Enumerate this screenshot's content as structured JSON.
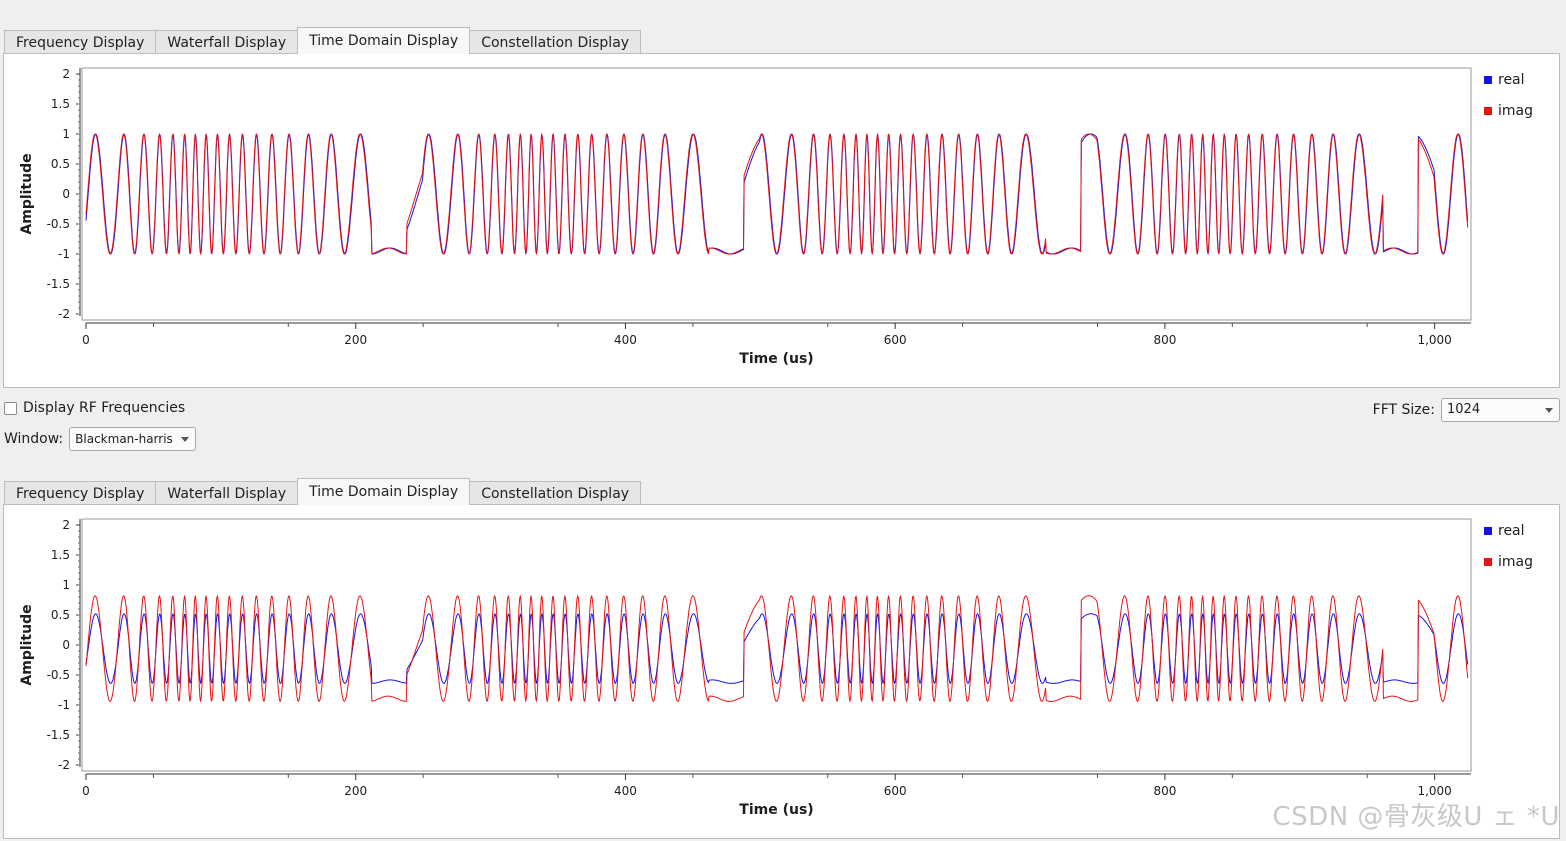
{
  "tabs": [
    "Frequency Display",
    "Waterfall Display",
    "Time Domain Display",
    "Constellation Display"
  ],
  "active_tab": "Time Domain Display",
  "colors": {
    "real": "#1414e6",
    "imag": "#e61414"
  },
  "legend": {
    "real": "real",
    "imag": "imag"
  },
  "controls": {
    "display_rf_label": "Display RF Frequencies",
    "display_rf_checked": false,
    "window_label": "Window:",
    "window_value": "Blackman-harris",
    "fft_label": "FFT Size:",
    "fft_value": "1024"
  },
  "watermark": "CSDN @骨灰级U ェ *U",
  "chart_data": [
    {
      "type": "line",
      "title": "",
      "xlabel": "Time (us)",
      "ylabel": "Amplitude",
      "xlim": [
        0,
        1024
      ],
      "ylim": [
        -2,
        2
      ],
      "xticks": [
        "0",
        "200",
        "400",
        "600",
        "800",
        "1,000"
      ],
      "yticks": [
        "2",
        "1.5",
        "1",
        "0.5",
        "0",
        "-0.5",
        "-1",
        "-1.5",
        "-2"
      ],
      "grid": false,
      "legend_position": "top-right",
      "series": [
        {
          "name": "real",
          "amplitude": 1.0,
          "offset": 0.0,
          "pattern": "FSK bursts, |x|≤1, period ~250 us"
        },
        {
          "name": "imag",
          "amplitude": 1.0,
          "offset": 0.0,
          "pattern": "FSK bursts, |x|≤1, period ~250 us"
        }
      ]
    },
    {
      "type": "line",
      "title": "",
      "xlabel": "Time (us)",
      "ylabel": "Amplitude",
      "xlim": [
        0,
        1024
      ],
      "ylim": [
        -2,
        2
      ],
      "xticks": [
        "0",
        "200",
        "400",
        "600",
        "800",
        "1,000"
      ],
      "yticks": [
        "2",
        "1.5",
        "1",
        "0.5",
        "0",
        "-0.5",
        "-1",
        "-1.5",
        "-2"
      ],
      "grid": false,
      "legend_position": "top-right",
      "series": [
        {
          "name": "real",
          "amplitude": 0.58,
          "offset": -0.06,
          "pattern": "FSK bursts, range ~-0.65..0.55"
        },
        {
          "name": "imag",
          "amplitude": 0.88,
          "offset": -0.06,
          "pattern": "FSK bursts, range ~-0.95..0.85"
        }
      ]
    }
  ]
}
